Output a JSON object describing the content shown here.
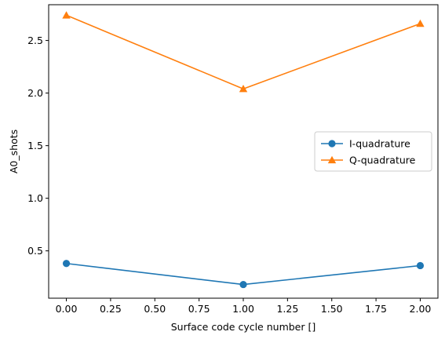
{
  "chart_data": {
    "type": "line",
    "xlabel": "Surface code cycle number []",
    "ylabel": "A0_shots",
    "xlim": [
      -0.1,
      2.1
    ],
    "ylim": [
      0.05,
      2.84
    ],
    "xticks": [
      0.0,
      0.25,
      0.5,
      0.75,
      1.0,
      1.25,
      1.5,
      1.75,
      2.0
    ],
    "xtick_labels": [
      "0.00",
      "0.25",
      "0.50",
      "0.75",
      "1.00",
      "1.25",
      "1.50",
      "1.75",
      "2.00"
    ],
    "yticks": [
      0.5,
      1.0,
      1.5,
      2.0,
      2.5
    ],
    "ytick_labels": [
      "0.5",
      "1.0",
      "1.5",
      "2.0",
      "2.5"
    ],
    "grid": false,
    "legend": "center-right",
    "series": [
      {
        "name": "I-quadrature",
        "x": [
          0,
          1,
          2
        ],
        "values": [
          0.38,
          0.18,
          0.36
        ],
        "color": "#1f77b4",
        "marker": "circle"
      },
      {
        "name": "Q-quadrature",
        "x": [
          0,
          1,
          2
        ],
        "values": [
          2.74,
          2.04,
          2.66
        ],
        "color": "#ff7f0e",
        "marker": "triangle"
      }
    ]
  }
}
